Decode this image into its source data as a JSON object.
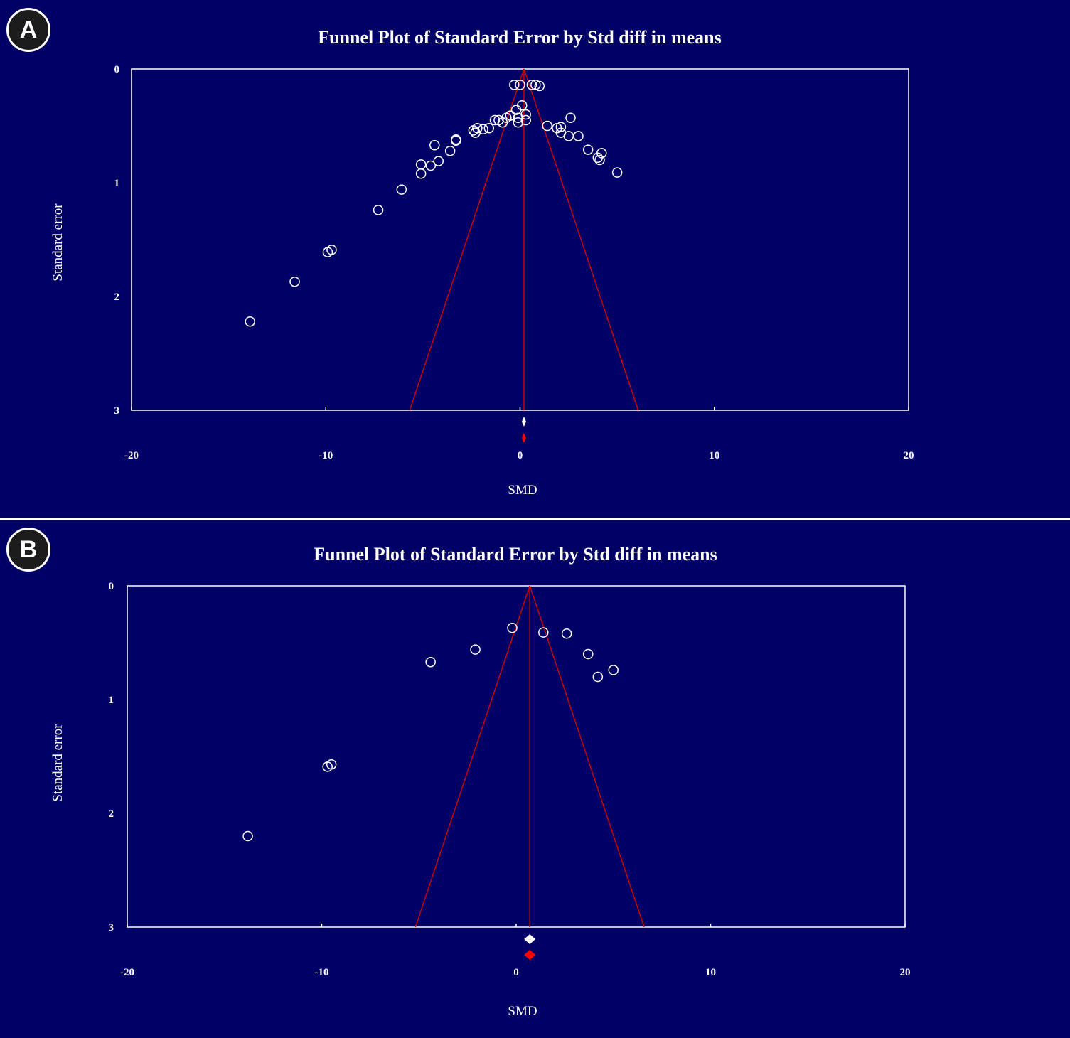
{
  "chart_data": [
    {
      "panel_label": "A",
      "type": "scatter",
      "title": "Funnel Plot of Standard Error by Std diff in means",
      "xlabel": "SMD",
      "ylabel": "Standard error",
      "xlim": [
        -20,
        20
      ],
      "ylim": [
        0,
        3
      ],
      "y_inverted": true,
      "x_ticks": [
        "-20",
        "-10",
        "0",
        "10",
        "20"
      ],
      "y_ticks": [
        "0",
        "1",
        "2",
        "3"
      ],
      "funnel_center": 0.2,
      "summary_observed": 0.2,
      "summary_adjusted": 0.2,
      "colors": {
        "background": "#000066",
        "funnel": "#cc0000",
        "points": "#ffffff",
        "observed_diamond": "#ffffff",
        "adjusted_diamond": "#ff0000"
      },
      "points": [
        {
          "x": -0.3,
          "y": 0.14
        },
        {
          "x": 0.0,
          "y": 0.14
        },
        {
          "x": 0.6,
          "y": 0.14
        },
        {
          "x": 0.8,
          "y": 0.14
        },
        {
          "x": 1.0,
          "y": 0.15
        },
        {
          "x": 0.1,
          "y": 0.32
        },
        {
          "x": -0.2,
          "y": 0.36
        },
        {
          "x": 0.3,
          "y": 0.4
        },
        {
          "x": -0.5,
          "y": 0.41
        },
        {
          "x": -0.7,
          "y": 0.43
        },
        {
          "x": -0.1,
          "y": 0.43
        },
        {
          "x": 0.3,
          "y": 0.45
        },
        {
          "x": -0.1,
          "y": 0.47
        },
        {
          "x": -1.3,
          "y": 0.45
        },
        {
          "x": -1.1,
          "y": 0.45
        },
        {
          "x": -0.9,
          "y": 0.47
        },
        {
          "x": 2.6,
          "y": 0.43
        },
        {
          "x": -1.6,
          "y": 0.52
        },
        {
          "x": -1.9,
          "y": 0.53
        },
        {
          "x": -2.2,
          "y": 0.52
        },
        {
          "x": -2.4,
          "y": 0.54
        },
        {
          "x": -2.3,
          "y": 0.56
        },
        {
          "x": 1.4,
          "y": 0.5
        },
        {
          "x": 1.9,
          "y": 0.52
        },
        {
          "x": 2.1,
          "y": 0.51
        },
        {
          "x": 2.1,
          "y": 0.56
        },
        {
          "x": 2.5,
          "y": 0.59
        },
        {
          "x": 3.0,
          "y": 0.59
        },
        {
          "x": -3.3,
          "y": 0.62
        },
        {
          "x": -3.3,
          "y": 0.63
        },
        {
          "x": -3.6,
          "y": 0.72
        },
        {
          "x": -4.4,
          "y": 0.67
        },
        {
          "x": -4.2,
          "y": 0.81
        },
        {
          "x": -4.6,
          "y": 0.85
        },
        {
          "x": -5.1,
          "y": 0.84
        },
        {
          "x": -5.1,
          "y": 0.92
        },
        {
          "x": 3.5,
          "y": 0.71
        },
        {
          "x": 4.0,
          "y": 0.78
        },
        {
          "x": 4.2,
          "y": 0.74
        },
        {
          "x": 4.1,
          "y": 0.8
        },
        {
          "x": 5.0,
          "y": 0.91
        },
        {
          "x": -6.1,
          "y": 1.06
        },
        {
          "x": -7.3,
          "y": 1.24
        },
        {
          "x": -9.7,
          "y": 1.59
        },
        {
          "x": -9.9,
          "y": 1.61
        },
        {
          "x": -11.6,
          "y": 1.87
        },
        {
          "x": -13.9,
          "y": 2.22
        }
      ]
    },
    {
      "panel_label": "B",
      "type": "scatter",
      "title": "Funnel Plot of Standard Error by Std diff in means",
      "xlabel": "SMD",
      "ylabel": "Standard error",
      "xlim": [
        -20,
        20
      ],
      "ylim": [
        0,
        3
      ],
      "y_inverted": true,
      "x_ticks": [
        "-20",
        "-10",
        "0",
        "10",
        "20"
      ],
      "y_ticks": [
        "0",
        "1",
        "2",
        "3"
      ],
      "funnel_center": 0.7,
      "summary_observed": 0.7,
      "summary_adjusted": 0.7,
      "colors": {
        "background": "#000066",
        "funnel": "#cc0000",
        "points": "#ffffff",
        "observed_diamond": "#ffffff",
        "adjusted_diamond": "#ff0000"
      },
      "points": [
        {
          "x": -0.2,
          "y": 0.37
        },
        {
          "x": 1.4,
          "y": 0.41
        },
        {
          "x": 2.6,
          "y": 0.42
        },
        {
          "x": -2.1,
          "y": 0.56
        },
        {
          "x": 3.7,
          "y": 0.6
        },
        {
          "x": -4.4,
          "y": 0.67
        },
        {
          "x": 5.0,
          "y": 0.74
        },
        {
          "x": 4.2,
          "y": 0.8
        },
        {
          "x": -9.5,
          "y": 1.57
        },
        {
          "x": -9.7,
          "y": 1.59
        },
        {
          "x": -13.8,
          "y": 2.2
        }
      ]
    }
  ]
}
